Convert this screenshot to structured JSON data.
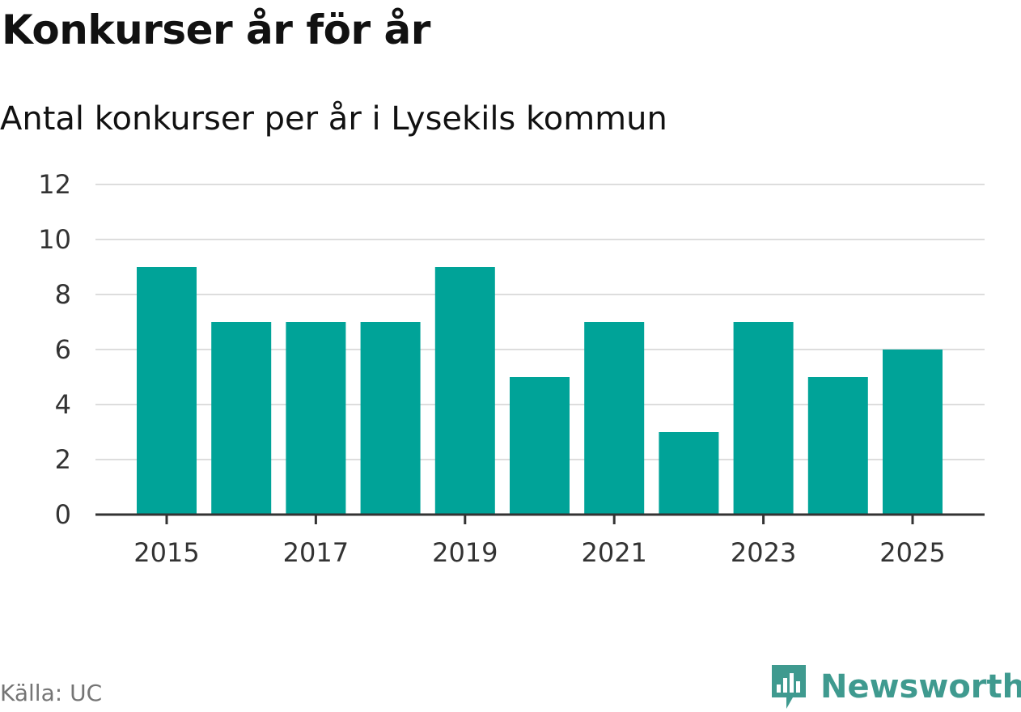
{
  "colors": {
    "bar": "#00a398",
    "gridline": "#dddddd",
    "axis": "#333333",
    "brand": "#3f9a8f"
  },
  "footer": {
    "source": "Källa: UC",
    "brand": "Newsworthy",
    "brand_icon": "newsworthy-logo-icon"
  },
  "chart_data": {
    "type": "bar",
    "title": "Konkurser år för år",
    "subtitle": "Antal konkurser per år i Lysekils kommun",
    "categories": [
      "2015",
      "2016",
      "2017",
      "2018",
      "2019",
      "2020",
      "2021",
      "2022",
      "2023",
      "2024",
      "2025"
    ],
    "values": [
      9,
      7,
      7,
      7,
      9,
      5,
      7,
      3,
      7,
      5,
      6
    ],
    "x_tick_labels": [
      "2015",
      "2017",
      "2019",
      "2021",
      "2023",
      "2025"
    ],
    "y_ticks": [
      0,
      2,
      4,
      6,
      8,
      10,
      12
    ],
    "ylim": [
      0,
      12
    ],
    "xlabel": "",
    "ylabel": "",
    "grid": true,
    "legend": "none"
  }
}
